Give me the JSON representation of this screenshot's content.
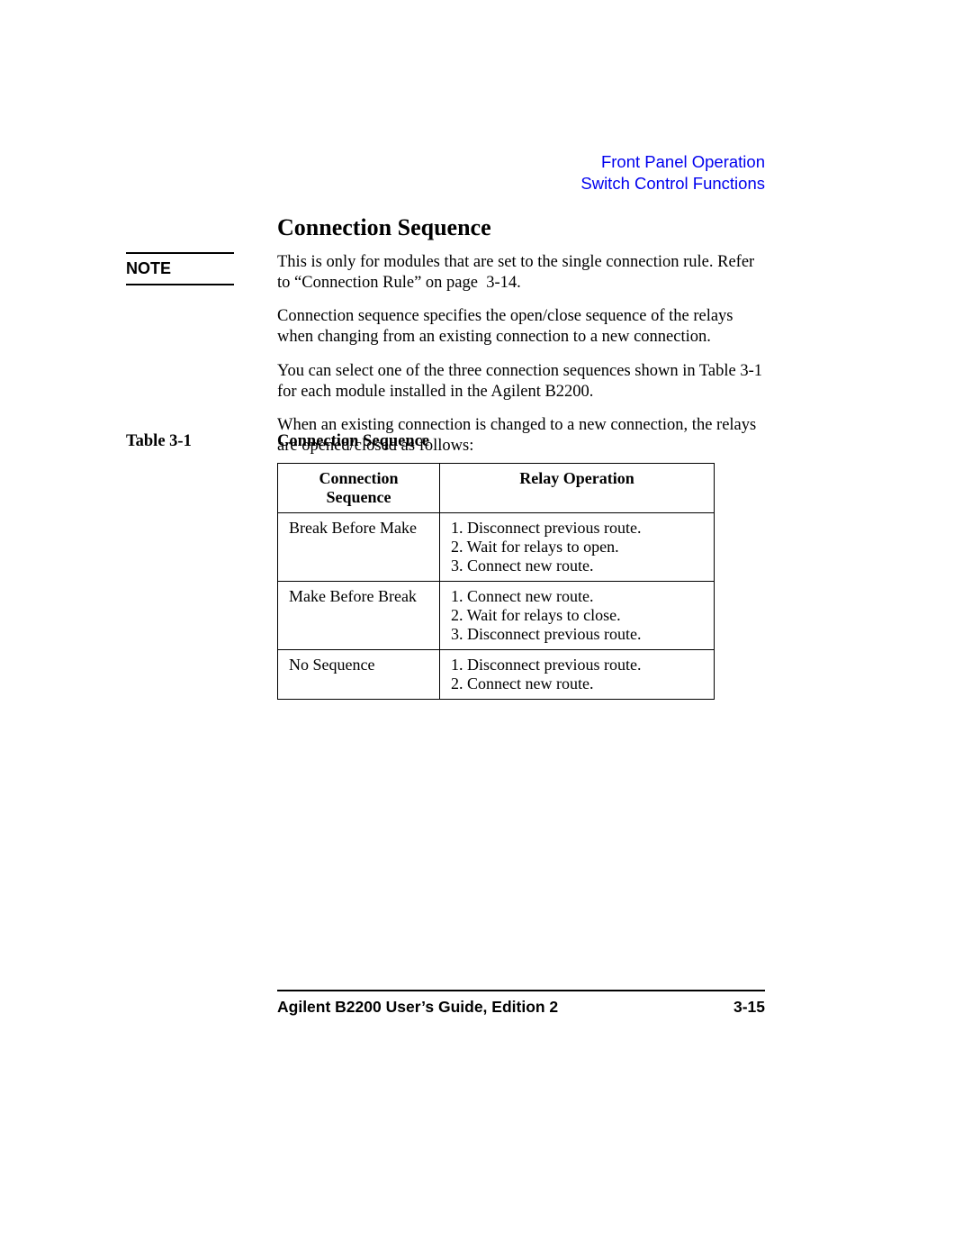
{
  "header": {
    "link1": "Front Panel Operation",
    "link2": "Switch Control Functions",
    "link_color": "#0000ee"
  },
  "section_title": "Connection Sequence",
  "note": {
    "label": "NOTE",
    "text": "This is only for modules that are set to the single connection rule. Refer to “Connection Rule” on page  3-14."
  },
  "paragraphs": {
    "p1": "Connection sequence specifies the open/close sequence of the relays when changing from an existing connection to a new connection.",
    "p2": "You can select one of the three connection sequences shown in Table 3-1 for each module installed in the Agilent B2200.",
    "p3": "When an existing connection is changed to a new connection, the relays are opened/closed as follows:"
  },
  "table": {
    "label": "Table 3-1",
    "caption": "Connection Sequence",
    "columns": [
      "Connection Sequence",
      "Relay Operation"
    ],
    "rows": [
      {
        "seq": "Break Before Make",
        "ops": [
          "1. Disconnect previous route.",
          "2. Wait for relays to open.",
          "3. Connect new route."
        ]
      },
      {
        "seq": "Make Before Break",
        "ops": [
          "1. Connect new route.",
          "2. Wait for relays to close.",
          "3. Disconnect previous route."
        ]
      },
      {
        "seq": "No Sequence",
        "ops": [
          "1. Disconnect previous route.",
          "2. Connect new route."
        ]
      }
    ]
  },
  "footer": {
    "left": "Agilent B2200 User’s Guide, Edition 2",
    "right": "3-15"
  },
  "style": {
    "body_font": "Times New Roman",
    "sans_font": "Arial",
    "text_color": "#000000",
    "background_color": "#ffffff",
    "body_fontsize": 18.5,
    "title_fontsize": 26,
    "footer_fontsize": 17.5,
    "rule_weight": 2.5
  }
}
